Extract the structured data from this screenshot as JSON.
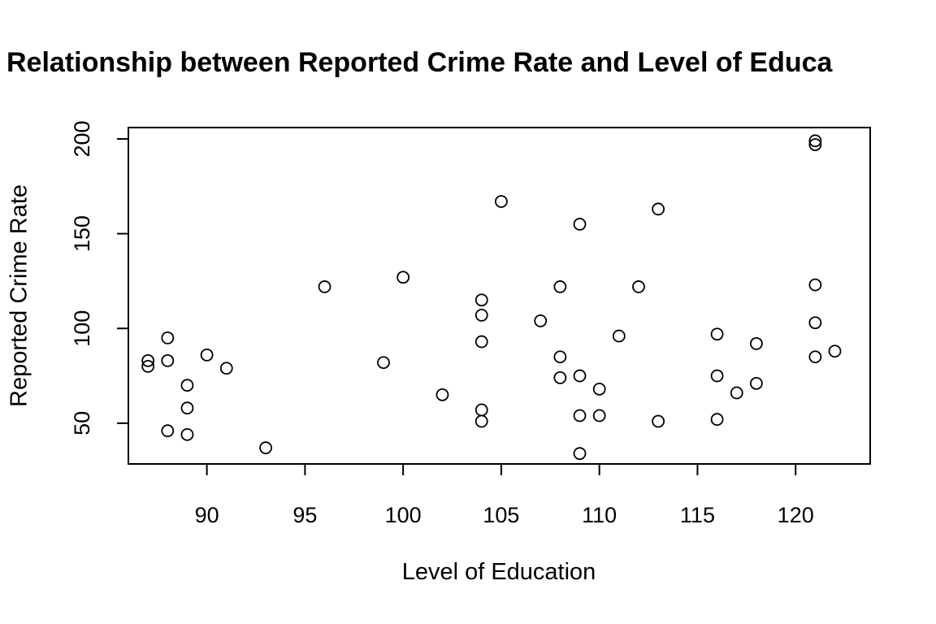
{
  "chart_data": {
    "type": "scatter",
    "title": "Relationship between Reported Crime Rate and Level of Educa",
    "xlabel": "Level of Education",
    "ylabel": "Reported Crime Rate",
    "xlim": [
      86,
      123.8
    ],
    "ylim": [
      28.5,
      206
    ],
    "xticks": [
      90,
      95,
      100,
      105,
      110,
      115,
      120
    ],
    "yticks": [
      50,
      100,
      150,
      200
    ],
    "grid": false,
    "legend": "none",
    "marker": "open-circle",
    "points": [
      {
        "x": 87,
        "y": 83
      },
      {
        "x": 87,
        "y": 80
      },
      {
        "x": 88,
        "y": 95
      },
      {
        "x": 88,
        "y": 83
      },
      {
        "x": 88,
        "y": 46
      },
      {
        "x": 89,
        "y": 70
      },
      {
        "x": 89,
        "y": 58
      },
      {
        "x": 89,
        "y": 44
      },
      {
        "x": 90,
        "y": 86
      },
      {
        "x": 91,
        "y": 79
      },
      {
        "x": 93,
        "y": 37
      },
      {
        "x": 96,
        "y": 122
      },
      {
        "x": 99,
        "y": 82
      },
      {
        "x": 100,
        "y": 127
      },
      {
        "x": 102,
        "y": 65
      },
      {
        "x": 104,
        "y": 115
      },
      {
        "x": 104,
        "y": 107
      },
      {
        "x": 104,
        "y": 93
      },
      {
        "x": 104,
        "y": 57
      },
      {
        "x": 104,
        "y": 51
      },
      {
        "x": 105,
        "y": 167
      },
      {
        "x": 107,
        "y": 104
      },
      {
        "x": 108,
        "y": 122
      },
      {
        "x": 108,
        "y": 85
      },
      {
        "x": 108,
        "y": 74
      },
      {
        "x": 109,
        "y": 155
      },
      {
        "x": 109,
        "y": 75
      },
      {
        "x": 109,
        "y": 54
      },
      {
        "x": 109,
        "y": 34
      },
      {
        "x": 110,
        "y": 68
      },
      {
        "x": 110,
        "y": 54
      },
      {
        "x": 111,
        "y": 96
      },
      {
        "x": 112,
        "y": 122
      },
      {
        "x": 113,
        "y": 163
      },
      {
        "x": 113,
        "y": 51
      },
      {
        "x": 116,
        "y": 97
      },
      {
        "x": 116,
        "y": 75
      },
      {
        "x": 116,
        "y": 52
      },
      {
        "x": 117,
        "y": 66
      },
      {
        "x": 118,
        "y": 92
      },
      {
        "x": 118,
        "y": 71
      },
      {
        "x": 121,
        "y": 199
      },
      {
        "x": 121,
        "y": 197
      },
      {
        "x": 121,
        "y": 123
      },
      {
        "x": 121,
        "y": 103
      },
      {
        "x": 121,
        "y": 85
      },
      {
        "x": 122,
        "y": 88
      }
    ]
  }
}
